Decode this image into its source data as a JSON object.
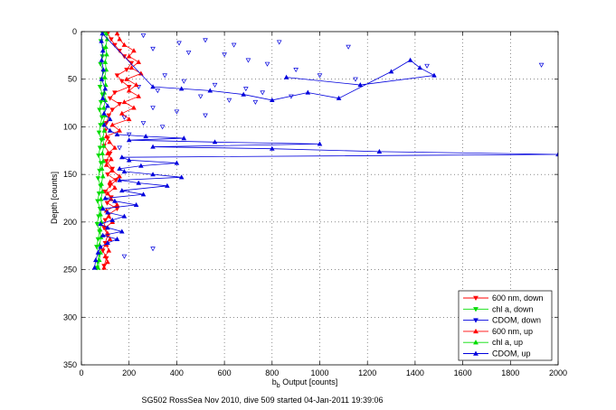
{
  "chart_data": {
    "type": "line",
    "title": "",
    "xlabel": "b_b Output [counts]",
    "xlabel_base": "b",
    "xlabel_sub": "b",
    "xlabel_rest": " Output [counts]",
    "ylabel": "Depth [counts]",
    "caption": "SG502 RossSea Nov 2010, dive 509 started 04-Jan-2011 19:39:06",
    "xlim": [
      0,
      2000
    ],
    "ylim": [
      0,
      350
    ],
    "y_reversed": true,
    "grid": true,
    "x_ticks": [
      0,
      200,
      400,
      600,
      800,
      1000,
      1200,
      1400,
      1600,
      1800,
      2000
    ],
    "y_ticks": [
      0,
      50,
      100,
      150,
      200,
      250,
      300,
      350
    ],
    "legend_position": "bottom-right",
    "series": [
      {
        "name": "600 nm, down",
        "color": "#ff0000",
        "marker": "triangle-down",
        "line": true,
        "points": [
          [
            110,
            2
          ],
          [
            125,
            8
          ],
          [
            140,
            14
          ],
          [
            160,
            20
          ],
          [
            180,
            26
          ],
          [
            210,
            33
          ],
          [
            190,
            40
          ],
          [
            150,
            46
          ],
          [
            170,
            52
          ],
          [
            200,
            58
          ],
          [
            140,
            64
          ],
          [
            120,
            70
          ],
          [
            160,
            76
          ],
          [
            130,
            82
          ],
          [
            115,
            88
          ],
          [
            105,
            96
          ],
          [
            100,
            104
          ],
          [
            110,
            112
          ],
          [
            95,
            120
          ],
          [
            120,
            128
          ],
          [
            105,
            136
          ],
          [
            130,
            144
          ],
          [
            110,
            150
          ],
          [
            145,
            156
          ],
          [
            120,
            162
          ],
          [
            100,
            168
          ],
          [
            125,
            174
          ],
          [
            108,
            180
          ],
          [
            150,
            186
          ],
          [
            115,
            192
          ],
          [
            100,
            198
          ],
          [
            95,
            206
          ],
          [
            110,
            214
          ],
          [
            100,
            222
          ],
          [
            90,
            230
          ],
          [
            105,
            238
          ],
          [
            95,
            246
          ]
        ]
      },
      {
        "name": "chl a, down",
        "color": "#00dd00",
        "marker": "triangle-down",
        "line": true,
        "points": [
          [
            90,
            2
          ],
          [
            82,
            10
          ],
          [
            95,
            18
          ],
          [
            88,
            26
          ],
          [
            80,
            34
          ],
          [
            92,
            42
          ],
          [
            85,
            50
          ],
          [
            78,
            58
          ],
          [
            88,
            66
          ],
          [
            82,
            74
          ],
          [
            76,
            82
          ],
          [
            86,
            90
          ],
          [
            80,
            98
          ],
          [
            74,
            106
          ],
          [
            84,
            114
          ],
          [
            78,
            122
          ],
          [
            72,
            130
          ],
          [
            82,
            138
          ],
          [
            76,
            146
          ],
          [
            70,
            154
          ],
          [
            80,
            162
          ],
          [
            74,
            170
          ],
          [
            68,
            178
          ],
          [
            78,
            186
          ],
          [
            72,
            194
          ],
          [
            66,
            202
          ],
          [
            76,
            210
          ],
          [
            70,
            218
          ],
          [
            64,
            226
          ],
          [
            74,
            234
          ],
          [
            68,
            242
          ],
          [
            66,
            248
          ]
        ]
      },
      {
        "name": "CDOM, down",
        "color": "#0000dd",
        "marker": "triangle-down",
        "line": false,
        "points": [
          [
            260,
            4
          ],
          [
            410,
            12
          ],
          [
            520,
            9
          ],
          [
            640,
            14
          ],
          [
            830,
            11
          ],
          [
            1120,
            16
          ],
          [
            1450,
            36
          ],
          [
            1930,
            35
          ],
          [
            300,
            18
          ],
          [
            450,
            22
          ],
          [
            600,
            24
          ],
          [
            700,
            30
          ],
          [
            780,
            34
          ],
          [
            900,
            40
          ],
          [
            1000,
            46
          ],
          [
            1150,
            50
          ],
          [
            350,
            46
          ],
          [
            430,
            52
          ],
          [
            560,
            56
          ],
          [
            690,
            60
          ],
          [
            760,
            64
          ],
          [
            880,
            68
          ],
          [
            240,
            58
          ],
          [
            320,
            62
          ],
          [
            500,
            68
          ],
          [
            620,
            72
          ],
          [
            730,
            74
          ],
          [
            300,
            80
          ],
          [
            400,
            84
          ],
          [
            520,
            88
          ],
          [
            180,
            90
          ],
          [
            260,
            96
          ],
          [
            340,
            100
          ],
          [
            200,
            108
          ],
          [
            160,
            122
          ],
          [
            300,
            228
          ],
          [
            180,
            236
          ]
        ]
      },
      {
        "name": "600 nm, up",
        "color": "#ff0000",
        "marker": "triangle-up",
        "line": true,
        "points": [
          [
            95,
            248
          ],
          [
            110,
            242
          ],
          [
            100,
            236
          ],
          [
            115,
            230
          ],
          [
            105,
            224
          ],
          [
            120,
            218
          ],
          [
            110,
            212
          ],
          [
            100,
            206
          ],
          [
            130,
            200
          ],
          [
            115,
            194
          ],
          [
            105,
            188
          ],
          [
            150,
            182
          ],
          [
            125,
            176
          ],
          [
            110,
            170
          ],
          [
            140,
            164
          ],
          [
            120,
            158
          ],
          [
            160,
            152
          ],
          [
            130,
            146
          ],
          [
            105,
            140
          ],
          [
            125,
            134
          ],
          [
            110,
            128
          ],
          [
            140,
            122
          ],
          [
            118,
            116
          ],
          [
            105,
            110
          ],
          [
            160,
            104
          ],
          [
            130,
            98
          ],
          [
            200,
            92
          ],
          [
            170,
            86
          ],
          [
            220,
            80
          ],
          [
            180,
            74
          ],
          [
            240,
            68
          ],
          [
            200,
            62
          ],
          [
            230,
            56
          ],
          [
            190,
            50
          ],
          [
            250,
            44
          ],
          [
            210,
            38
          ],
          [
            240,
            32
          ],
          [
            200,
            26
          ],
          [
            220,
            20
          ],
          [
            180,
            14
          ],
          [
            160,
            8
          ],
          [
            150,
            2
          ]
        ]
      },
      {
        "name": "chl a, up",
        "color": "#00dd00",
        "marker": "triangle-up",
        "line": true,
        "points": [
          [
            70,
            248
          ],
          [
            75,
            240
          ],
          [
            80,
            232
          ],
          [
            76,
            224
          ],
          [
            82,
            216
          ],
          [
            78,
            208
          ],
          [
            84,
            200
          ],
          [
            80,
            192
          ],
          [
            86,
            184
          ],
          [
            82,
            176
          ],
          [
            88,
            168
          ],
          [
            84,
            160
          ],
          [
            90,
            152
          ],
          [
            86,
            144
          ],
          [
            92,
            136
          ],
          [
            88,
            128
          ],
          [
            94,
            120
          ],
          [
            90,
            112
          ],
          [
            96,
            104
          ],
          [
            92,
            96
          ],
          [
            98,
            88
          ],
          [
            94,
            80
          ],
          [
            100,
            72
          ],
          [
            96,
            64
          ],
          [
            102,
            56
          ],
          [
            98,
            48
          ],
          [
            104,
            40
          ],
          [
            100,
            32
          ],
          [
            106,
            24
          ],
          [
            102,
            16
          ],
          [
            108,
            8
          ],
          [
            104,
            2
          ]
        ]
      },
      {
        "name": "CDOM, up",
        "color": "#0000dd",
        "marker": "triangle-up",
        "line": true,
        "points": [
          [
            55,
            248
          ],
          [
            60,
            240
          ],
          [
            70,
            232
          ],
          [
            80,
            226
          ],
          [
            110,
            222
          ],
          [
            150,
            218
          ],
          [
            90,
            214
          ],
          [
            170,
            210
          ],
          [
            110,
            206
          ],
          [
            80,
            202
          ],
          [
            130,
            198
          ],
          [
            180,
            194
          ],
          [
            110,
            190
          ],
          [
            90,
            186
          ],
          [
            230,
            182
          ],
          [
            140,
            178
          ],
          [
            100,
            175
          ],
          [
            260,
            171
          ],
          [
            170,
            167
          ],
          [
            360,
            162
          ],
          [
            240,
            159
          ],
          [
            160,
            156
          ],
          [
            420,
            153
          ],
          [
            300,
            150
          ],
          [
            180,
            147
          ],
          [
            160,
            144
          ],
          [
            250,
            141
          ],
          [
            400,
            138
          ],
          [
            200,
            135
          ],
          [
            170,
            132
          ],
          [
            2000,
            129
          ],
          [
            1250,
            126
          ],
          [
            800,
            123
          ],
          [
            300,
            121
          ],
          [
            1000,
            118
          ],
          [
            560,
            116
          ],
          [
            200,
            114
          ],
          [
            430,
            112
          ],
          [
            270,
            110
          ],
          [
            150,
            108
          ],
          [
            120,
            104
          ],
          [
            95,
            98
          ],
          [
            120,
            92
          ],
          [
            95,
            86
          ],
          [
            110,
            78
          ],
          [
            90,
            70
          ],
          [
            100,
            60
          ],
          [
            85,
            50
          ],
          [
            92,
            40
          ],
          [
            85,
            30
          ],
          [
            90,
            20
          ],
          [
            84,
            10
          ],
          [
            88,
            2
          ],
          [
            300,
            58
          ],
          [
            420,
            60
          ],
          [
            540,
            62
          ],
          [
            680,
            66
          ],
          [
            800,
            72
          ],
          [
            950,
            64
          ],
          [
            1080,
            70
          ],
          [
            1300,
            42
          ],
          [
            1380,
            30
          ],
          [
            1420,
            38
          ],
          [
            1480,
            46
          ],
          [
            1170,
            56
          ],
          [
            860,
            48
          ]
        ]
      }
    ]
  }
}
